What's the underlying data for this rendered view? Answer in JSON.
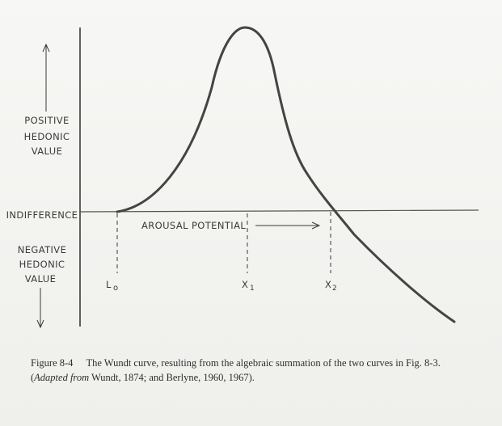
{
  "labels": {
    "positive": [
      "POSITIVE",
      "HEDONIC",
      "VALUE"
    ],
    "indifference": "INDIFFERENCE",
    "negative": [
      "NEGATIVE",
      "HEDONIC",
      "VALUE"
    ],
    "arousal_potential": "AROUSAL POTENTIAL",
    "lo": "L",
    "lo_sub": "o",
    "x1": "X",
    "x1_sub": "1",
    "x2": "X",
    "x2_sub": "2"
  },
  "caption": {
    "figure_number": "Figure 8-4",
    "text_part1": "The Wundt curve, resulting from the algebraic summation of the two curves in Fig. 8-3. (",
    "adapted_from": "Adapted from",
    "text_part2": " Wundt, 1874; and Berlyne, 1960, 1967)."
  },
  "colors": {
    "ink": "#3a3a3a",
    "curve": "#444444"
  }
}
